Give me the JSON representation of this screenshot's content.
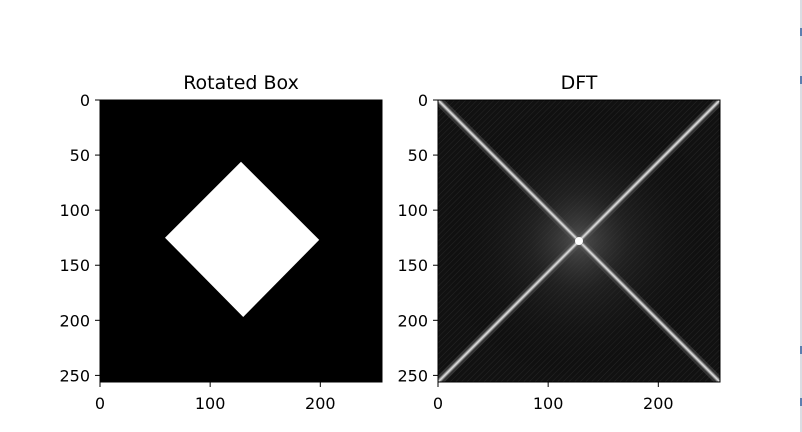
{
  "chart_data": [
    {
      "type": "heatmap",
      "title": "Rotated Box",
      "xlabel": "",
      "ylabel": "",
      "xlim": [
        0,
        256
      ],
      "ylim": [
        256,
        0
      ],
      "xticks": [
        0,
        100,
        200
      ],
      "yticks": [
        0,
        50,
        100,
        150,
        200,
        250
      ],
      "colormap": "gray",
      "background_value": 0,
      "shape_value": 1,
      "rotated_square_vertices": [
        [
          128,
          56
        ],
        [
          199,
          127
        ],
        [
          130,
          197
        ],
        [
          59,
          125
        ]
      ]
    },
    {
      "type": "heatmap",
      "title": "DFT",
      "xlabel": "",
      "ylabel": "",
      "xlim": [
        0,
        256
      ],
      "ylim": [
        256,
        0
      ],
      "xticks": [
        0,
        100,
        200
      ],
      "yticks": [
        0,
        50,
        100,
        150,
        200,
        250
      ],
      "colormap": "gray",
      "center": [
        128,
        128
      ],
      "diagonal_lines": [
        [
          [
            0,
            0
          ],
          [
            256,
            256
          ]
        ],
        [
          [
            0,
            256
          ],
          [
            256,
            0
          ]
        ]
      ]
    }
  ],
  "colors": {
    "image_background": "#000000",
    "box_fill": "#ffffff",
    "dft_line": "#d8d8d8",
    "axis": "#000000"
  }
}
